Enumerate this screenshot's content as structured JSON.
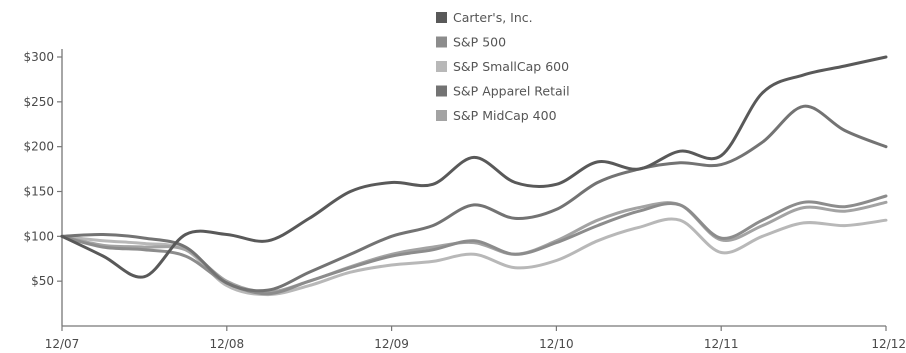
{
  "chart_data": {
    "type": "line",
    "title": "",
    "xlabel": "",
    "ylabel": "",
    "x": [
      0,
      0.25,
      0.5,
      0.75,
      1,
      1.25,
      1.5,
      1.75,
      2,
      2.25,
      2.5,
      2.75,
      3,
      3.25,
      3.5,
      3.75,
      4,
      4.25,
      4.5,
      4.75,
      5
    ],
    "x_ticks": [
      {
        "value": 0,
        "label": "12/07"
      },
      {
        "value": 1,
        "label": "12/08"
      },
      {
        "value": 2,
        "label": "12/09"
      },
      {
        "value": 3,
        "label": "12/10"
      },
      {
        "value": 4,
        "label": "12/11"
      },
      {
        "value": 5,
        "label": "12/12"
      }
    ],
    "ylim": [
      0,
      300
    ],
    "y_ticks": [
      {
        "value": 50,
        "label": "$50"
      },
      {
        "value": 100,
        "label": "$100"
      },
      {
        "value": 150,
        "label": "$150"
      },
      {
        "value": 200,
        "label": "$200"
      },
      {
        "value": 250,
        "label": "$250"
      },
      {
        "value": 300,
        "label": "$300"
      }
    ],
    "grid": false,
    "legend_position": "top-center",
    "series": [
      {
        "name": "Carter's, Inc.",
        "color": "#595959",
        "values": [
          100,
          78,
          55,
          102,
          102,
          95,
          120,
          150,
          160,
          158,
          188,
          160,
          158,
          183,
          175,
          195,
          190,
          260,
          280,
          290,
          300
        ]
      },
      {
        "name": "S&P 500",
        "color": "#8c8c8c",
        "values": [
          100,
          88,
          85,
          78,
          48,
          36,
          50,
          65,
          78,
          85,
          95,
          80,
          93,
          112,
          128,
          135,
          98,
          118,
          138,
          133,
          145
        ]
      },
      {
        "name": "S&P SmallCap 600",
        "color": "#b8b8b8",
        "values": [
          100,
          95,
          92,
          85,
          45,
          35,
          45,
          60,
          68,
          72,
          80,
          65,
          73,
          95,
          110,
          118,
          82,
          100,
          115,
          112,
          118
        ]
      },
      {
        "name": "S&P Apparel Retail",
        "color": "#737373",
        "values": [
          100,
          102,
          98,
          88,
          48,
          40,
          60,
          80,
          100,
          112,
          135,
          120,
          130,
          160,
          175,
          182,
          180,
          205,
          245,
          218,
          200
        ]
      },
      {
        "name": "S&P MidCap 400",
        "color": "#a3a3a3",
        "values": [
          100,
          90,
          88,
          85,
          50,
          38,
          50,
          66,
          80,
          88,
          93,
          80,
          95,
          118,
          132,
          135,
          96,
          112,
          132,
          128,
          138
        ]
      }
    ]
  }
}
